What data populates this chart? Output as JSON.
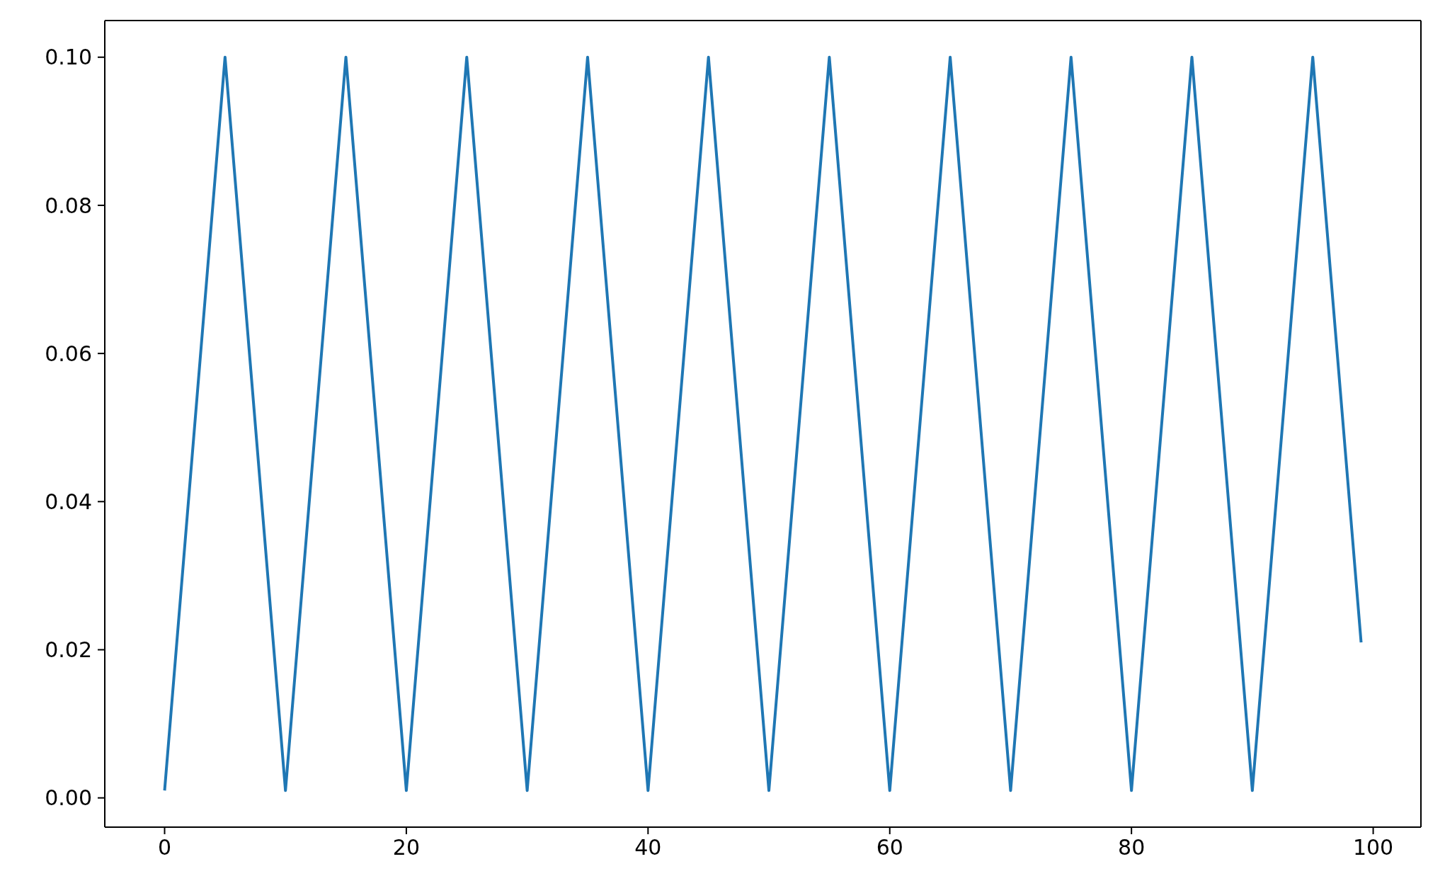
{
  "chart_data": {
    "type": "line",
    "x": [
      0,
      5,
      10,
      15,
      20,
      25,
      30,
      35,
      40,
      45,
      50,
      55,
      60,
      65,
      70,
      75,
      80,
      85,
      90,
      95,
      99
    ],
    "series": [
      {
        "color": "#1f77b4",
        "values": [
          0.001,
          0.1,
          0.001,
          0.1,
          0.001,
          0.1,
          0.001,
          0.1,
          0.001,
          0.1,
          0.001,
          0.1,
          0.001,
          0.1,
          0.001,
          0.1,
          0.001,
          0.1,
          0.001,
          0.1,
          0.021
        ]
      }
    ],
    "xlim": [
      -4.95,
      103.95
    ],
    "xticks": [
      0,
      20,
      40,
      60,
      80,
      100
    ],
    "ylim": [
      -0.00395,
      0.10495
    ],
    "yticks": [
      {
        "value": 0,
        "label": "0.00"
      },
      {
        "value": 0.02,
        "label": "0.02"
      },
      {
        "value": 0.04,
        "label": "0.04"
      },
      {
        "value": 0.06,
        "label": "0.06"
      },
      {
        "value": 0.08,
        "label": "0.08"
      },
      {
        "value": 0.1,
        "label": "0.10"
      }
    ],
    "grid": false,
    "legend": false
  }
}
